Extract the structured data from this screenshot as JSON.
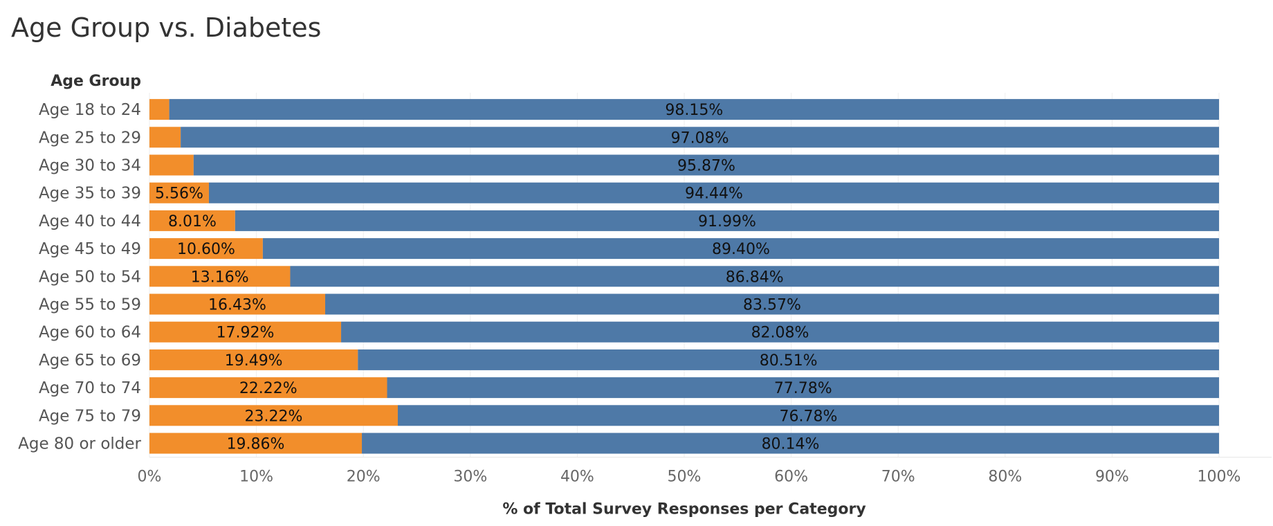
{
  "chart_data": {
    "type": "bar",
    "orientation": "horizontal",
    "stacked": true,
    "title": "Age Group vs. Diabetes",
    "row_header": "Age Group",
    "xlabel": "% of Total Survey Responses per Category",
    "xlim": [
      0,
      100
    ],
    "x_ticks": [
      "0%",
      "10%",
      "20%",
      "30%",
      "40%",
      "50%",
      "60%",
      "70%",
      "80%",
      "90%",
      "100%"
    ],
    "categories": [
      "Age 18 to 24",
      "Age 25 to 29",
      "Age 30 to 34",
      "Age 35 to 39",
      "Age 40 to 44",
      "Age 45 to 49",
      "Age 50 to 54",
      "Age 55 to 59",
      "Age 60 to 64",
      "Age 65 to 69",
      "Age 70 to 74",
      "Age 75 to 79",
      "Age 80 or older"
    ],
    "series": [
      {
        "color": "#F28E2B",
        "values": [
          1.85,
          2.92,
          4.13,
          5.56,
          8.01,
          10.6,
          13.16,
          16.43,
          17.92,
          19.49,
          22.22,
          23.22,
          19.86
        ],
        "labels": [
          "",
          "",
          "",
          "5.56%",
          "8.01%",
          "10.60%",
          "13.16%",
          "16.43%",
          "17.92%",
          "19.49%",
          "22.22%",
          "23.22%",
          "19.86%"
        ]
      },
      {
        "color": "#4E79A7",
        "values": [
          98.15,
          97.08,
          95.87,
          94.44,
          91.99,
          89.4,
          86.84,
          83.57,
          82.08,
          80.51,
          77.78,
          76.78,
          80.14
        ],
        "labels": [
          "98.15%",
          "97.08%",
          "95.87%",
          "94.44%",
          "91.99%",
          "89.40%",
          "86.84%",
          "83.57%",
          "82.08%",
          "80.51%",
          "77.78%",
          "76.78%",
          "80.14%"
        ]
      }
    ],
    "grid": true,
    "legend": "none"
  }
}
